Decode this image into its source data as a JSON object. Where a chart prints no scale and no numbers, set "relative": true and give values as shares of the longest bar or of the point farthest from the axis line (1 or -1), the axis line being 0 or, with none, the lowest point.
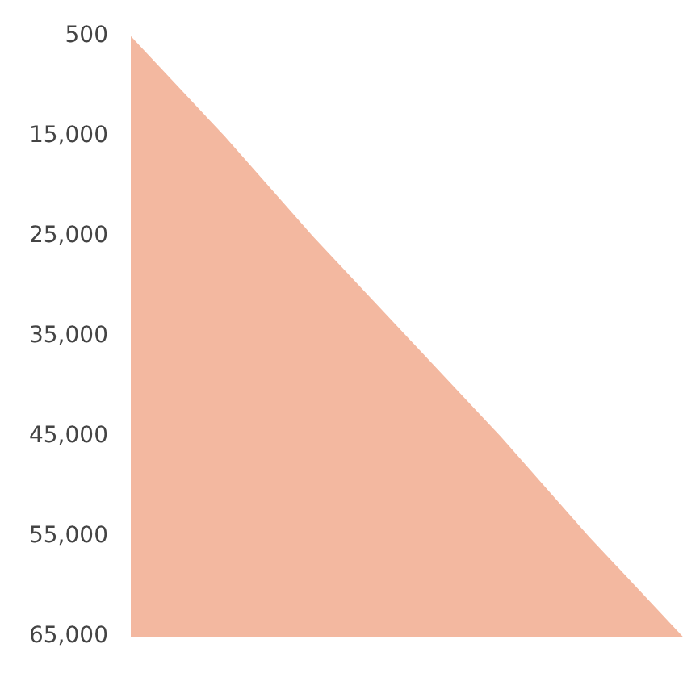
{
  "chart_data": {
    "type": "area",
    "orientation": "horizontal",
    "relative": true,
    "categories": [
      "500",
      "15,000",
      "25,000",
      "35,000",
      "45,000",
      "55,000",
      "65,000"
    ],
    "series": [
      {
        "color": "#f3b8a0",
        "values": [
          0,
          0.17,
          0.33,
          0.5,
          0.67,
          0.83,
          1
        ]
      }
    ],
    "grid": false,
    "legend": false
  }
}
